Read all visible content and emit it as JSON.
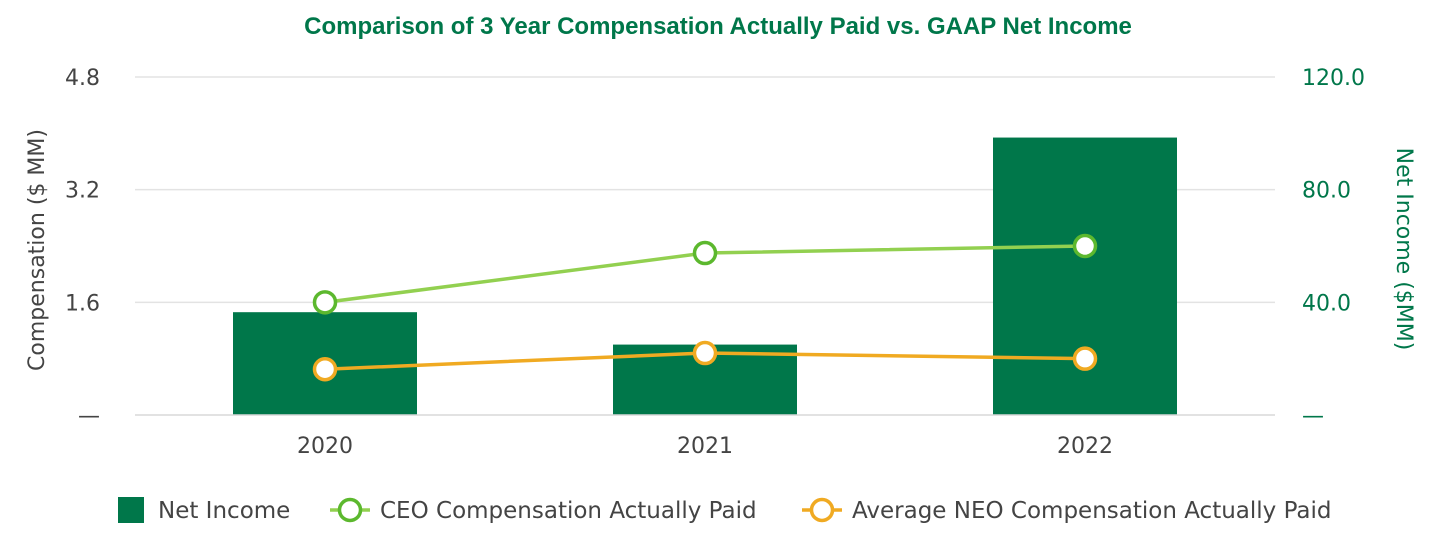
{
  "chart_data": {
    "type": "bar",
    "title": "Comparison of 3 Year Compensation Actually Paid vs. GAAP Net Income",
    "categories": [
      "2020",
      "2021",
      "2022"
    ],
    "y_left": {
      "label": "Compensation ($ MM)",
      "ylim": [
        0,
        4.8
      ],
      "ticks": [
        0,
        1.6,
        3.2,
        4.8
      ],
      "tick_labels": [
        "—",
        "1.6",
        "3.2",
        "4.8"
      ]
    },
    "y_right": {
      "label": "Net Income ($MM)",
      "ylim": [
        0,
        120
      ],
      "ticks": [
        0,
        40,
        80,
        120
      ],
      "tick_labels": [
        "—",
        "40.0",
        "80.0",
        "120.0"
      ]
    },
    "series": [
      {
        "name": "Net Income",
        "kind": "bar",
        "axis": "right",
        "values": [
          36.5,
          25,
          98.5
        ],
        "color": "#00774A"
      },
      {
        "name": "CEO Compensation Actually Paid",
        "kind": "line",
        "axis": "left",
        "values": [
          1.6,
          2.3,
          2.4
        ],
        "color": "#92D050",
        "marker_color": "#5CB82E"
      },
      {
        "name": "Average NEO Compensation Actually Paid",
        "kind": "line",
        "axis": "left",
        "values": [
          0.65,
          0.88,
          0.8
        ],
        "color": "#F0AA22",
        "marker_color": "#F0AA22"
      }
    ],
    "grid": true,
    "legend_position": "bottom"
  },
  "colors": {
    "title": "#00774A",
    "left_axis_text": "#444444",
    "right_axis_text": "#00774A",
    "gridline": "#E3E3E3"
  }
}
